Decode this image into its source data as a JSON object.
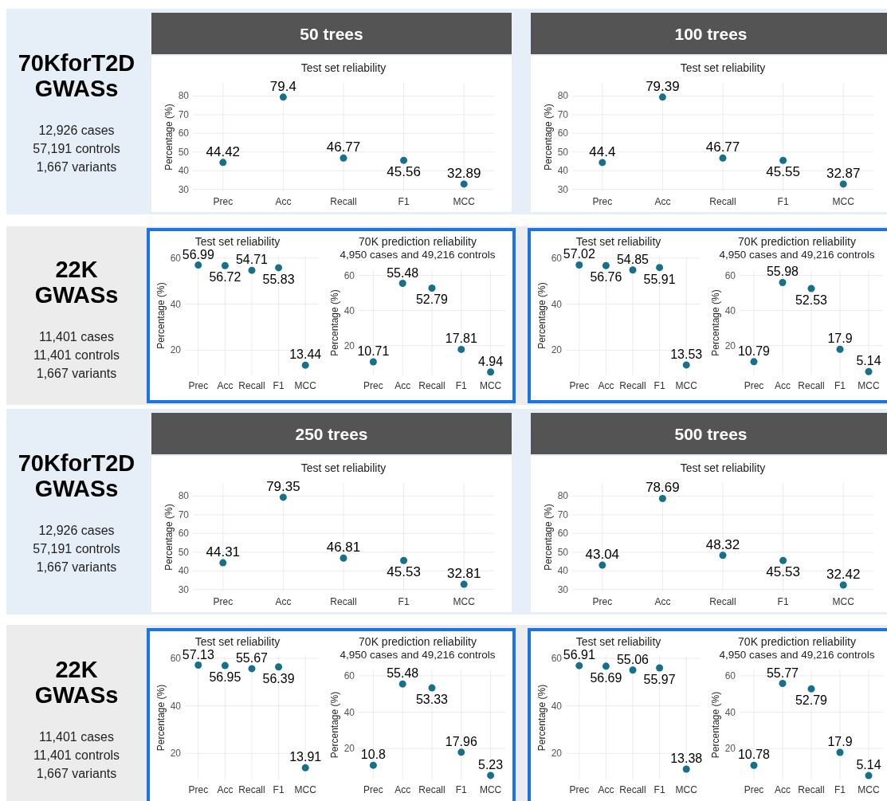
{
  "chart_data": [
    {
      "type": "scatter",
      "title": "Test set reliability",
      "ylabel": "Percentage (%)",
      "categories": [
        "Prec",
        "Acc",
        "Recall",
        "F1",
        "MCC"
      ],
      "values": [
        44.42,
        79.4,
        46.77,
        45.56,
        32.89
      ],
      "color": "#17708a",
      "marker": "circle",
      "ylim": [
        29,
        87
      ],
      "yticks": [
        30,
        40,
        50,
        60,
        70,
        80
      ],
      "grid": true,
      "data_labels": true,
      "annotations": [
        "50 trees",
        "70KforT2D GWASs",
        "12,926 cases",
        "57,191 controls",
        "1,667 variants"
      ]
    },
    {
      "type": "scatter",
      "title": "Test set reliability",
      "ylabel": "Percentage (%)",
      "categories": [
        "Prec",
        "Acc",
        "Recall",
        "F1",
        "MCC"
      ],
      "values": [
        44.4,
        79.39,
        46.77,
        45.55,
        32.87
      ],
      "color": "#17708a",
      "marker": "circle",
      "ylim": [
        29,
        87
      ],
      "yticks": [
        30,
        40,
        50,
        60,
        70,
        80
      ],
      "grid": true,
      "data_labels": true,
      "annotations": [
        "100 trees"
      ]
    },
    {
      "type": "scatter",
      "title": "Test set reliability",
      "ylabel": "Percentage (%)",
      "categories": [
        "Prec",
        "Acc",
        "Recall",
        "F1",
        "MCC"
      ],
      "values": [
        56.99,
        56.72,
        54.71,
        55.83,
        13.44
      ],
      "color": "#17708a",
      "marker": "circle",
      "ylim": [
        9,
        61
      ],
      "yticks": [
        20,
        40,
        60
      ],
      "grid": true,
      "data_labels": true,
      "annotations": [
        "22K GWASs",
        "11,401 cases",
        "11,401 controls",
        "1,667 variants"
      ]
    },
    {
      "type": "scatter",
      "title": "70K prediction reliability",
      "subtitle": "4,950 cases and 49,216 controls",
      "ylabel": "Percentage (%)",
      "categories": [
        "Prec",
        "Acc",
        "Recall",
        "F1",
        "MCC"
      ],
      "values": [
        10.71,
        55.48,
        52.79,
        17.81,
        4.94
      ],
      "color": "#17708a",
      "marker": "circle",
      "ylim": [
        3,
        63
      ],
      "yticks": [
        20,
        40,
        60
      ],
      "grid": true,
      "data_labels": true
    },
    {
      "type": "scatter",
      "title": "Test set reliability",
      "ylabel": "Percentage (%)",
      "categories": [
        "Prec",
        "Acc",
        "Recall",
        "F1",
        "MCC"
      ],
      "values": [
        57.02,
        56.76,
        54.85,
        55.91,
        13.53
      ],
      "color": "#17708a",
      "marker": "circle",
      "ylim": [
        9,
        61
      ],
      "yticks": [
        20,
        40,
        60
      ],
      "grid": true,
      "data_labels": true
    },
    {
      "type": "scatter",
      "title": "70K prediction reliability",
      "subtitle": "4,950 cases and 49,216 controls",
      "ylabel": "Percentage (%)",
      "categories": [
        "Prec",
        "Acc",
        "Recall",
        "F1",
        "MCC"
      ],
      "values": [
        10.79,
        55.98,
        52.53,
        17.9,
        5.14
      ],
      "color": "#17708a",
      "marker": "circle",
      "ylim": [
        3,
        63
      ],
      "yticks": [
        20,
        40,
        60
      ],
      "grid": true,
      "data_labels": true
    },
    {
      "type": "scatter",
      "title": "Test set reliability",
      "ylabel": "Percentage (%)",
      "categories": [
        "Prec",
        "Acc",
        "Recall",
        "F1",
        "MCC"
      ],
      "values": [
        44.31,
        79.35,
        46.81,
        45.53,
        32.81
      ],
      "color": "#17708a",
      "marker": "circle",
      "ylim": [
        29,
        87
      ],
      "yticks": [
        30,
        40,
        50,
        60,
        70,
        80
      ],
      "grid": true,
      "data_labels": true,
      "annotations": [
        "250 trees",
        "70KforT2D GWASs",
        "12,926 cases",
        "57,191 controls",
        "1,667 variants"
      ]
    },
    {
      "type": "scatter",
      "title": "Test set reliability",
      "ylabel": "Percentage (%)",
      "categories": [
        "Prec",
        "Acc",
        "Recall",
        "F1",
        "MCC"
      ],
      "values": [
        43.04,
        78.69,
        48.32,
        45.53,
        32.42
      ],
      "color": "#17708a",
      "marker": "circle",
      "ylim": [
        29,
        87
      ],
      "yticks": [
        30,
        40,
        50,
        60,
        70,
        80
      ],
      "grid": true,
      "data_labels": true,
      "annotations": [
        "500 trees"
      ]
    },
    {
      "type": "scatter",
      "title": "Test set reliability",
      "ylabel": "Percentage (%)",
      "categories": [
        "Prec",
        "Acc",
        "Recall",
        "F1",
        "MCC"
      ],
      "values": [
        57.13,
        56.95,
        55.67,
        56.39,
        13.91
      ],
      "color": "#17708a",
      "marker": "circle",
      "ylim": [
        9,
        61
      ],
      "yticks": [
        20,
        40,
        60
      ],
      "grid": true,
      "data_labels": true,
      "annotations": [
        "22K GWASs",
        "11,401 cases",
        "11,401 controls",
        "1,667 variants"
      ]
    },
    {
      "type": "scatter",
      "title": "70K prediction reliability",
      "subtitle": "4,950 cases and 49,216 controls",
      "ylabel": "Percentage (%)",
      "categories": [
        "Prec",
        "Acc",
        "Recall",
        "F1",
        "MCC"
      ],
      "values": [
        10.8,
        55.48,
        53.33,
        17.96,
        5.23
      ],
      "color": "#17708a",
      "marker": "circle",
      "ylim": [
        3,
        63
      ],
      "yticks": [
        20,
        40,
        60
      ],
      "grid": true,
      "data_labels": true
    },
    {
      "type": "scatter",
      "title": "Test set reliability",
      "ylabel": "Percentage (%)",
      "categories": [
        "Prec",
        "Acc",
        "Recall",
        "F1",
        "MCC"
      ],
      "values": [
        56.91,
        56.69,
        55.06,
        55.97,
        13.38
      ],
      "color": "#17708a",
      "marker": "circle",
      "ylim": [
        9,
        61
      ],
      "yticks": [
        20,
        40,
        60
      ],
      "grid": true,
      "data_labels": true
    },
    {
      "type": "scatter",
      "title": "70K prediction reliability",
      "subtitle": "4,950 cases and 49,216 controls",
      "ylabel": "Percentage (%)",
      "categories": [
        "Prec",
        "Acc",
        "Recall",
        "F1",
        "MCC"
      ],
      "values": [
        10.78,
        55.77,
        52.79,
        17.9,
        5.14
      ],
      "color": "#17708a",
      "marker": "circle",
      "ylim": [
        3,
        63
      ],
      "yticks": [
        20,
        40,
        60
      ],
      "grid": true,
      "data_labels": true
    }
  ]
}
